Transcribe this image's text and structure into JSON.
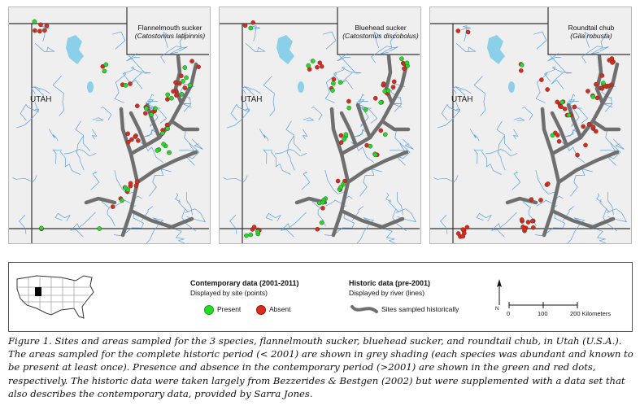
{
  "maps": [
    {
      "state_label": "UTAH",
      "common_name": "Flannelmouth sucker",
      "scientific_name": "(Catostomus latipinnis)"
    },
    {
      "state_label": "UTAH",
      "common_name": "Bluehead sucker",
      "scientific_name": "(Catostomus discobolus)"
    },
    {
      "state_label": "UTAH",
      "common_name": "Roundtail chub",
      "scientific_name": "(Gila robusta)"
    }
  ],
  "legend": {
    "contemporary_title": "Contemporary data (2001-2011)",
    "contemporary_sub": "Displayed by site (points)",
    "present_label": "Present",
    "absent_label": "Absent",
    "historic_title": "Historic data (pre-2001)",
    "historic_sub": "Displayed by river (lines)",
    "historic_line_label": "Sites sampled historically",
    "north_label": "N",
    "scale_ticks": [
      "0",
      "100",
      "200 Kilometers"
    ]
  },
  "colors": {
    "present": "#22dd22",
    "absent": "#dd2a1a",
    "historic_river": "#6f6f6f",
    "stream": "#5b9fe0",
    "lake": "#8ccfe8"
  },
  "caption": "Figure 1.  Sites and areas sampled for the 3 species, flannelmouth sucker, bluehead sucker, and roundtail chub, in Utah (U.S.A.). The areas sampled for the complete historic period (< 2001) are shown in grey shading (each species was abundant and known to be present at least once). Presence and absence in the contemporary period (>2001) are shown in the green and red dots, respectively. The historic data were taken largely from Bezzerides & Bestgen (2002) but were supplemented with a data set that also describes the contemporary data, provided by Sarra Jones."
}
